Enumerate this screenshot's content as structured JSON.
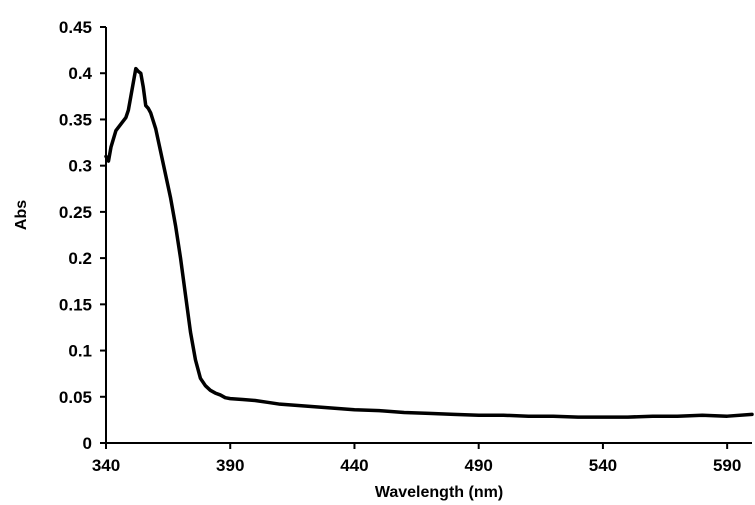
{
  "chart_data": {
    "type": "line",
    "title": "",
    "xlabel": "Wavelength (nm)",
    "ylabel": "Abs",
    "xlim": [
      340,
      600
    ],
    "ylim": [
      0,
      0.45
    ],
    "x_ticks": [
      340,
      390,
      440,
      490,
      540,
      590
    ],
    "y_ticks": [
      0,
      0.05,
      0.1,
      0.15,
      0.2,
      0.25,
      0.3,
      0.35,
      0.4,
      0.45
    ],
    "x_tick_labels": [
      "340",
      "390",
      "440",
      "490",
      "540",
      "590"
    ],
    "y_tick_labels": [
      "0",
      "0.05",
      "0.1",
      "0.15",
      "0.2",
      "0.25",
      "0.3",
      "0.35",
      "0.4",
      "0.45"
    ],
    "grid": false,
    "legend": "none",
    "line_color": "#000000",
    "series": [
      {
        "x": [
          340,
          341,
          342,
          344,
          346,
          348,
          349,
          350,
          351,
          352,
          353,
          354,
          355,
          356,
          357,
          358,
          360,
          362,
          364,
          366,
          368,
          370,
          372,
          374,
          376,
          378,
          380,
          382,
          384,
          386,
          388,
          390,
          395,
          400,
          405,
          410,
          420,
          430,
          440,
          450,
          460,
          470,
          480,
          490,
          500,
          510,
          520,
          530,
          540,
          550,
          560,
          570,
          580,
          590,
          600
        ],
        "y": [
          0.31,
          0.305,
          0.32,
          0.338,
          0.345,
          0.352,
          0.36,
          0.375,
          0.39,
          0.405,
          0.402,
          0.4,
          0.385,
          0.365,
          0.362,
          0.357,
          0.34,
          0.315,
          0.29,
          0.265,
          0.235,
          0.2,
          0.16,
          0.12,
          0.09,
          0.07,
          0.062,
          0.057,
          0.054,
          0.052,
          0.049,
          0.048,
          0.047,
          0.046,
          0.044,
          0.042,
          0.04,
          0.038,
          0.036,
          0.035,
          0.033,
          0.032,
          0.031,
          0.03,
          0.03,
          0.029,
          0.029,
          0.028,
          0.028,
          0.028,
          0.029,
          0.029,
          0.03,
          0.029,
          0.031
        ]
      }
    ]
  }
}
